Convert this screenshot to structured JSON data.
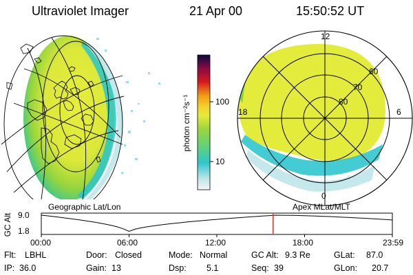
{
  "header": {
    "title": "Ultraviolet Imager",
    "date": "21 Apr 00",
    "time": "15:50:52 UT"
  },
  "colorbar": {
    "unit_label": "photon cm⁻²s⁻¹",
    "ticks": [
      "100",
      "10"
    ]
  },
  "polar_plot": {
    "mlt_labels": {
      "top": "12",
      "left": "18",
      "right": "6",
      "bottom": "0"
    },
    "lat_labels": [
      "60",
      "70",
      "80"
    ]
  },
  "captions": {
    "left": "Geographic Lat/Lon",
    "right": "Apex MLat/MLT"
  },
  "timeline": {
    "ylabel": "GC Alt",
    "yticks": [
      "9.0",
      "1.8"
    ],
    "xticks": [
      "00:00",
      "06:00",
      "12:00",
      "18:00",
      "23:59"
    ],
    "current_time_fraction": 0.6603,
    "marker_color": "#e0231b"
  },
  "footer": {
    "row1": [
      {
        "label": "Flt:",
        "value": "LBHL"
      },
      {
        "label": "Door:",
        "value": "Closed"
      },
      {
        "label": "Mode:",
        "value": "Normal"
      },
      {
        "label": "GC Alt:",
        "value": "9.3 Re"
      },
      {
        "label": "GLat:",
        "value": "87.0"
      }
    ],
    "row2": [
      {
        "label": "IP:",
        "value": "36.0"
      },
      {
        "label": "Gain:",
        "value": "13"
      },
      {
        "label": "Dsp:",
        "value": "5.1"
      },
      {
        "label": "Seq:",
        "value": "39"
      },
      {
        "label": "GLon:",
        "value": "20.7"
      }
    ]
  },
  "colors": {
    "disk_green": "#84d33c",
    "disk_yellow": "#e6ee3a",
    "limb_cyan": "#22c8d2",
    "limb_pale": "#b9e6ec"
  }
}
